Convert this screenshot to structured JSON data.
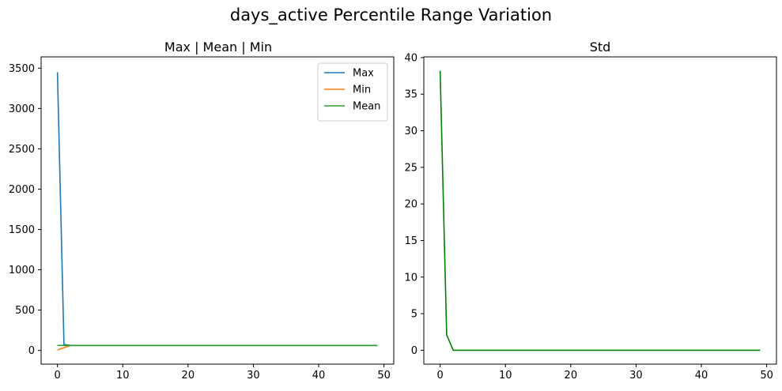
{
  "figure_title": "days_active Percentile Range Variation",
  "chart_data": [
    {
      "type": "line",
      "title": "Max | Mean | Min",
      "xlabel": "",
      "ylabel": "",
      "xlim": [
        -2.5,
        51.5
      ],
      "ylim": [
        -170,
        3640
      ],
      "xticks": [
        0,
        10,
        20,
        30,
        40,
        50
      ],
      "yticks": [
        0,
        500,
        1000,
        1500,
        2000,
        2500,
        3000,
        3500
      ],
      "grid": false,
      "legend": "top-right",
      "series": [
        {
          "name": "Max",
          "color": "#1f77b4",
          "x": [
            0,
            1,
            2,
            49
          ],
          "y": [
            3450,
            75,
            62,
            62
          ]
        },
        {
          "name": "Min",
          "color": "#ff7f0e",
          "x": [
            0,
            1,
            2,
            49
          ],
          "y": [
            5,
            35,
            62,
            62
          ]
        },
        {
          "name": "Mean",
          "color": "#2ca02c",
          "x": [
            0,
            1,
            2,
            49
          ],
          "y": [
            62,
            62,
            62,
            62
          ]
        }
      ]
    },
    {
      "type": "line",
      "title": "Std",
      "xlabel": "",
      "ylabel": "",
      "xlim": [
        -2.5,
        51.5
      ],
      "ylim": [
        -1.9,
        40.1
      ],
      "xticks": [
        0,
        10,
        20,
        30,
        40,
        50
      ],
      "yticks": [
        0,
        5,
        10,
        15,
        20,
        25,
        30,
        35,
        40
      ],
      "grid": false,
      "legend": "none",
      "series": [
        {
          "name": "Std",
          "color": "#008000",
          "x": [
            0,
            1,
            2,
            49
          ],
          "y": [
            38.2,
            2.1,
            0,
            0
          ]
        }
      ]
    }
  ]
}
